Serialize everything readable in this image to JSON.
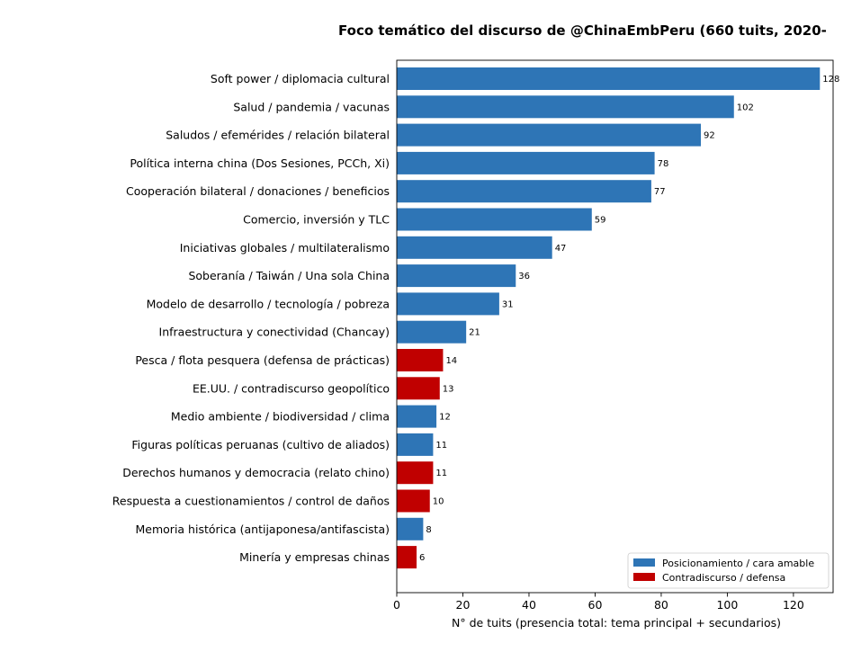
{
  "chart_data": {
    "type": "bar",
    "orientation": "horizontal",
    "title": "Foco temático del discurso de @ChinaEmbPeru (660 tuits, 2020-",
    "xlabel": "N° de tuits (presencia total: tema principal + secundarios)",
    "ylabel": "",
    "xlim": [
      0,
      132
    ],
    "xticks": [
      0,
      20,
      40,
      60,
      80,
      100,
      120
    ],
    "grid": false,
    "legend_position": "bottom-right",
    "colors": {
      "positioning": "#2e75b6",
      "counter": "#c00000"
    },
    "legend": [
      {
        "name": "Posicionamiento / cara amable",
        "group": "positioning"
      },
      {
        "name": "Contradiscurso / defensa",
        "group": "counter"
      }
    ],
    "categories": [
      "Soft power / diplomacia cultural",
      "Salud / pandemia / vacunas",
      "Saludos / efemérides / relación bilateral",
      "Política interna china (Dos Sesiones, PCCh, Xi)",
      "Cooperación bilateral / donaciones / beneficios",
      "Comercio, inversión y TLC",
      "Iniciativas globales / multilateralismo",
      "Soberanía / Taiwán / Una sola China",
      "Modelo de desarrollo / tecnología / pobreza",
      "Infraestructura y conectividad (Chancay)",
      "Pesca / flota pesquera (defensa de prácticas)",
      "EE.UU. / contradiscurso geopolítico",
      "Medio ambiente / biodiversidad / clima",
      "Figuras políticas peruanas (cultivo de aliados)",
      "Derechos humanos y democracia (relato chino)",
      "Respuesta a cuestionamientos / control de daños",
      "Memoria histórica (antijaponesa/antifascista)",
      "Minería y empresas chinas"
    ],
    "values": [
      128,
      102,
      92,
      78,
      77,
      59,
      47,
      36,
      31,
      21,
      14,
      13,
      12,
      11,
      11,
      10,
      8,
      6
    ],
    "groups": [
      "positioning",
      "positioning",
      "positioning",
      "positioning",
      "positioning",
      "positioning",
      "positioning",
      "positioning",
      "positioning",
      "positioning",
      "counter",
      "counter",
      "positioning",
      "positioning",
      "counter",
      "counter",
      "positioning",
      "counter"
    ]
  }
}
